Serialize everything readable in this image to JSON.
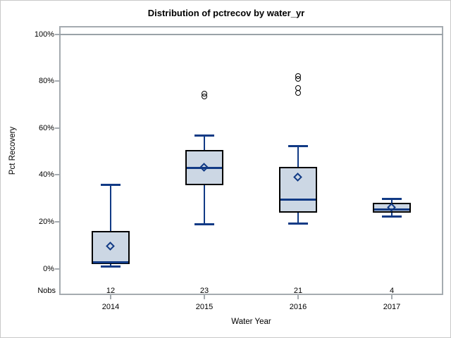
{
  "title": "Distribution of pctrecov by water_yr",
  "y_axis": {
    "label": "Pct Recovery",
    "ticks": [
      "100%",
      "80%",
      "60%",
      "40%",
      "20%",
      "0%"
    ],
    "tick_values": [
      100,
      80,
      60,
      40,
      20,
      0
    ]
  },
  "x_axis": {
    "label": "Water Year",
    "categories": [
      "2014",
      "2015",
      "2016",
      "2017"
    ]
  },
  "nobs": {
    "header": "Nobs",
    "values": [
      "12",
      "23",
      "21",
      "4"
    ]
  },
  "chart_data": {
    "type": "boxplot",
    "title": "Distribution of pctrecov by water_yr",
    "xlabel": "Water Year",
    "ylabel": "Pct Recovery",
    "ylim": [
      0,
      100
    ],
    "y_unit": "%",
    "grid": false,
    "reference_line_y": 100,
    "categories": [
      "2014",
      "2015",
      "2016",
      "2017"
    ],
    "series": [
      {
        "category": "2014",
        "nobs": 12,
        "whisker_low": 1,
        "q1": 2,
        "median": 3,
        "q3": 16,
        "whisker_high": 36,
        "mean": 9.5,
        "outliers": []
      },
      {
        "category": "2015",
        "nobs": 23,
        "whisker_low": 19,
        "q1": 35.5,
        "median": 43,
        "q3": 50.5,
        "whisker_high": 57,
        "mean": 43,
        "outliers": [
          73.5,
          74.5
        ]
      },
      {
        "category": "2016",
        "nobs": 21,
        "whisker_low": 19.5,
        "q1": 24,
        "median": 29.5,
        "q3": 43.5,
        "whisker_high": 52.5,
        "mean": 39,
        "outliers": [
          75,
          77,
          81,
          82
        ]
      },
      {
        "category": "2017",
        "nobs": 4,
        "whisker_low": 22.5,
        "q1": 24,
        "median": 25.5,
        "q3": 28,
        "whisker_high": 30,
        "mean": 26,
        "outliers": []
      }
    ],
    "colors": {
      "box_fill": "#ccd7e4",
      "box_border": "#000000",
      "whisker": "#113a85",
      "median": "#113a85",
      "mean_marker": "#113a85",
      "outlier": "#000000",
      "frame": "#a5abb0",
      "reference_line": "#9aa2a8",
      "text": "#000000"
    }
  }
}
